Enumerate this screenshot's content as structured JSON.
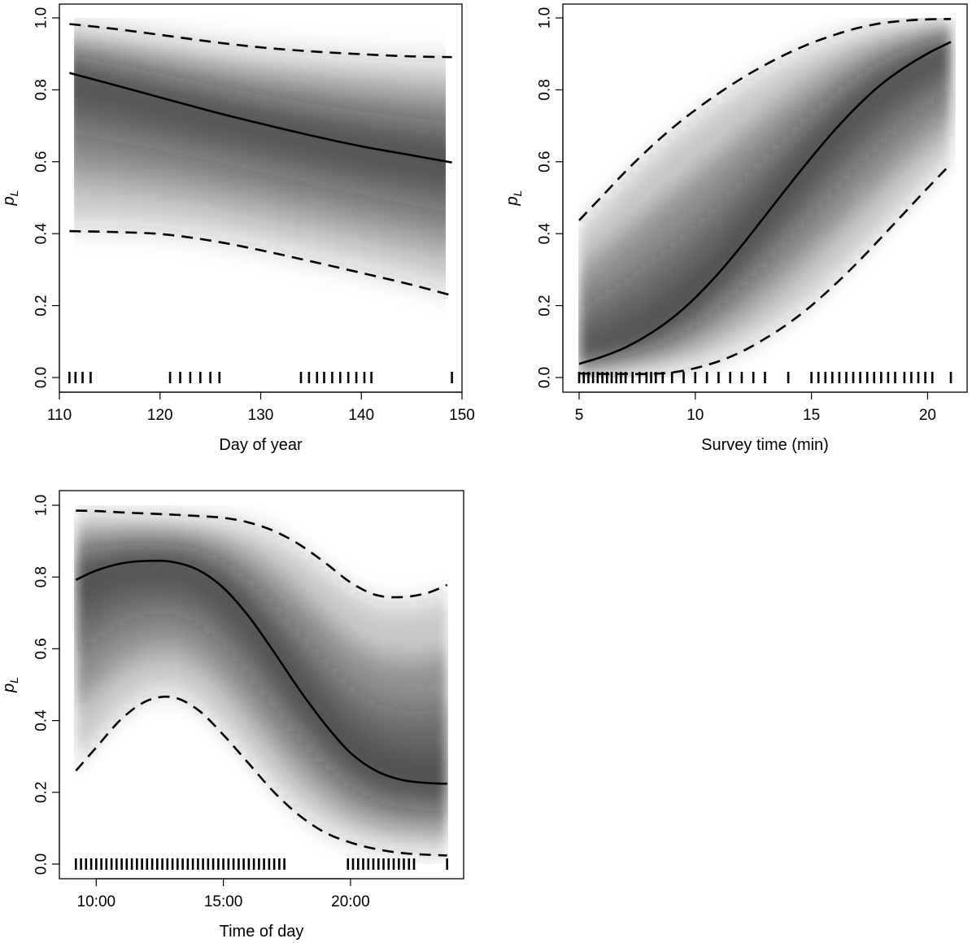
{
  "chart_data": [
    {
      "type": "line",
      "xlabel": "Day of year",
      "ylabel": "p",
      "ylabel_sub": "L",
      "xlim": [
        110,
        150
      ],
      "ylim": [
        0,
        1
      ],
      "xticks": [
        {
          "value": 110,
          "label": "110"
        },
        {
          "value": 120,
          "label": "120"
        },
        {
          "value": 130,
          "label": "130"
        },
        {
          "value": 140,
          "label": "140"
        },
        {
          "value": 150,
          "label": "150"
        }
      ],
      "yticks": [
        {
          "value": 0.0,
          "label": "0.0"
        },
        {
          "value": 0.2,
          "label": "0.2"
        },
        {
          "value": 0.4,
          "label": "0.4"
        },
        {
          "value": 0.6,
          "label": "0.6"
        },
        {
          "value": 0.8,
          "label": "0.8"
        },
        {
          "value": 1.0,
          "label": "1.0"
        }
      ],
      "grid": false,
      "x": [
        111,
        115,
        120,
        125,
        130,
        135,
        140,
        145,
        149
      ],
      "series": [
        {
          "role": "estimate",
          "style": "solid",
          "values": [
            0.847,
            0.817,
            0.779,
            0.741,
            0.706,
            0.673,
            0.643,
            0.618,
            0.598
          ]
        },
        {
          "role": "upper",
          "style": "dashed",
          "values": [
            0.983,
            0.971,
            0.953,
            0.934,
            0.918,
            0.907,
            0.899,
            0.893,
            0.891
          ]
        },
        {
          "role": "lower",
          "style": "dashed",
          "values": [
            0.407,
            0.405,
            0.399,
            0.381,
            0.354,
            0.323,
            0.291,
            0.258,
            0.228
          ]
        }
      ],
      "rug": [
        111.0,
        111.6,
        112.3,
        113.1,
        121.0,
        122.0,
        123.0,
        124.0,
        125.0,
        125.9,
        134.0,
        134.8,
        135.6,
        136.3,
        137.1,
        137.9,
        138.7,
        139.5,
        140.3,
        141.0,
        149.0
      ]
    },
    {
      "type": "line",
      "xlabel": "Survey time (min)",
      "ylabel": "p",
      "ylabel_sub": "L",
      "xlim": [
        4.3,
        21.7
      ],
      "ylim": [
        0,
        1
      ],
      "xticks": [
        {
          "value": 5,
          "label": "5"
        },
        {
          "value": 10,
          "label": "10"
        },
        {
          "value": 15,
          "label": "15"
        },
        {
          "value": 20,
          "label": "20"
        }
      ],
      "yticks": [
        {
          "value": 0.0,
          "label": "0.0"
        },
        {
          "value": 0.2,
          "label": "0.2"
        },
        {
          "value": 0.4,
          "label": "0.4"
        },
        {
          "value": 0.6,
          "label": "0.6"
        },
        {
          "value": 0.8,
          "label": "0.8"
        },
        {
          "value": 1.0,
          "label": "1.0"
        }
      ],
      "grid": false,
      "x": [
        5,
        6,
        7,
        8,
        9,
        10,
        11,
        12,
        13,
        14,
        15,
        16,
        17,
        18,
        19,
        20,
        21
      ],
      "series": [
        {
          "role": "estimate",
          "style": "solid",
          "values": [
            0.038,
            0.058,
            0.084,
            0.12,
            0.165,
            0.222,
            0.29,
            0.367,
            0.449,
            0.532,
            0.612,
            0.688,
            0.756,
            0.815,
            0.862,
            0.901,
            0.933
          ]
        },
        {
          "role": "upper",
          "style": "dashed",
          "values": [
            0.437,
            0.505,
            0.573,
            0.636,
            0.693,
            0.744,
            0.79,
            0.832,
            0.869,
            0.902,
            0.93,
            0.953,
            0.972,
            0.985,
            0.992,
            0.996,
            0.997
          ]
        },
        {
          "role": "lower",
          "style": "dashed",
          "values": [
            0.011,
            0.01,
            0.01,
            0.01,
            0.014,
            0.026,
            0.045,
            0.072,
            0.108,
            0.15,
            0.2,
            0.258,
            0.321,
            0.389,
            0.458,
            0.527,
            0.594
          ]
        }
      ],
      "rug": [
        5.0,
        5.2,
        5.4,
        5.6,
        5.8,
        6.0,
        6.2,
        6.4,
        6.6,
        6.8,
        7.0,
        7.3,
        7.6,
        7.9,
        8.1,
        8.3,
        8.6,
        9.0,
        9.5,
        10.0,
        10.5,
        11.0,
        11.5,
        12.0,
        12.5,
        13.0,
        14.0,
        15.0,
        15.3,
        15.6,
        15.9,
        16.2,
        16.5,
        16.8,
        17.1,
        17.4,
        17.7,
        18.0,
        18.3,
        18.6,
        19.0,
        19.3,
        19.6,
        19.9,
        20.2,
        21.0
      ]
    },
    {
      "type": "line",
      "xlabel": "Time of day",
      "ylabel": "p",
      "ylabel_sub": "L",
      "xlim": [
        8.55,
        24.45
      ],
      "ylim": [
        0,
        1
      ],
      "xticks": [
        {
          "value": 10,
          "label": "10:00"
        },
        {
          "value": 15,
          "label": "15:00"
        },
        {
          "value": 20,
          "label": "20:00"
        }
      ],
      "yticks": [
        {
          "value": 0.0,
          "label": "0.0"
        },
        {
          "value": 0.2,
          "label": "0.2"
        },
        {
          "value": 0.4,
          "label": "0.4"
        },
        {
          "value": 0.6,
          "label": "0.6"
        },
        {
          "value": 0.8,
          "label": "0.8"
        },
        {
          "value": 1.0,
          "label": "1.0"
        }
      ],
      "grid": false,
      "x": [
        9.2,
        10,
        11,
        12,
        13,
        14,
        15,
        16,
        17,
        18,
        19,
        20,
        21,
        22,
        23,
        23.8
      ],
      "series": [
        {
          "role": "estimate",
          "style": "solid",
          "values": [
            0.792,
            0.818,
            0.838,
            0.845,
            0.842,
            0.82,
            0.77,
            0.69,
            0.59,
            0.485,
            0.39,
            0.31,
            0.26,
            0.235,
            0.226,
            0.224
          ]
        },
        {
          "role": "upper",
          "style": "dashed",
          "values": [
            0.985,
            0.984,
            0.98,
            0.977,
            0.974,
            0.97,
            0.965,
            0.952,
            0.928,
            0.89,
            0.84,
            0.785,
            0.75,
            0.744,
            0.755,
            0.778
          ]
        },
        {
          "role": "lower",
          "style": "dashed",
          "values": [
            0.26,
            0.325,
            0.405,
            0.455,
            0.465,
            0.43,
            0.36,
            0.28,
            0.2,
            0.135,
            0.088,
            0.06,
            0.042,
            0.031,
            0.026,
            0.024
          ]
        }
      ],
      "rug": [
        9.2,
        9.4,
        9.6,
        9.8,
        10.0,
        10.2,
        10.4,
        10.6,
        10.8,
        11.0,
        11.2,
        11.4,
        11.6,
        11.8,
        12.0,
        12.2,
        12.4,
        12.6,
        12.8,
        13.0,
        13.2,
        13.4,
        13.6,
        13.8,
        14.0,
        14.2,
        14.4,
        14.6,
        14.8,
        15.0,
        15.2,
        15.4,
        15.6,
        15.8,
        16.0,
        16.2,
        16.4,
        16.6,
        16.8,
        17.0,
        17.2,
        17.4,
        19.9,
        20.1,
        20.3,
        20.5,
        20.7,
        20.9,
        21.1,
        21.3,
        21.5,
        21.7,
        21.9,
        22.1,
        22.3,
        22.5,
        23.8
      ]
    }
  ]
}
